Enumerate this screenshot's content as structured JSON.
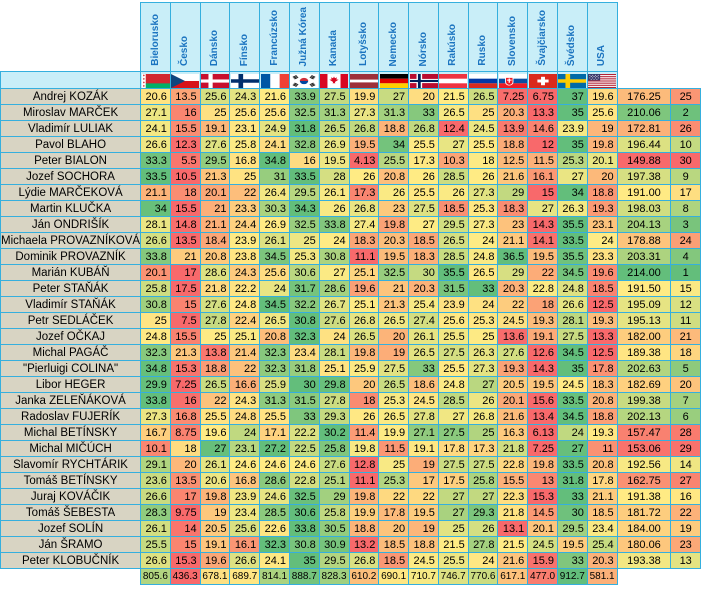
{
  "chart_data": {
    "type": "heatmap",
    "palette": {
      "low": "#F8696B",
      "mid": "#FFEB84",
      "high": "#63BE7B"
    },
    "header_bg": "#C9EEF8",
    "header_text_color": "#1B74C0",
    "name_bg": "#D8D4C3",
    "grid_color": "#35AFDE",
    "columns": [
      {
        "label": "Bielorusko",
        "flag": "by"
      },
      {
        "label": "Česko",
        "flag": "cz"
      },
      {
        "label": "Dánsko",
        "flag": "dk"
      },
      {
        "label": "Fínsko",
        "flag": "fi"
      },
      {
        "label": "Francúzsko",
        "flag": "fr"
      },
      {
        "label": "Južná Kórea",
        "flag": "kr"
      },
      {
        "label": "Kanada",
        "flag": "ca"
      },
      {
        "label": "Lotyšsko",
        "flag": "lv"
      },
      {
        "label": "Nemecko",
        "flag": "de"
      },
      {
        "label": "Nórsko",
        "flag": "no"
      },
      {
        "label": "Rakúsko",
        "flag": "at"
      },
      {
        "label": "Rusko",
        "flag": "ru"
      },
      {
        "label": "Slovensko",
        "flag": "sk"
      },
      {
        "label": "Švajčiarsko",
        "flag": "ch"
      },
      {
        "label": "Švédsko",
        "flag": "se"
      },
      {
        "label": "USA",
        "flag": "us"
      }
    ],
    "rows": [
      {
        "name": "Andrej KOZÁK",
        "values": [
          20.6,
          13.5,
          25.6,
          24.3,
          21.6,
          33.9,
          27.5,
          19.9,
          27,
          20,
          21.5,
          26.5,
          7.25,
          6.75,
          37,
          19.6
        ],
        "total": "176.25",
        "rank": 25
      },
      {
        "name": "Miroslav MARČEK",
        "values": [
          27.1,
          16,
          25,
          25.6,
          25.6,
          32.5,
          31.3,
          27.3,
          31.3,
          33,
          26.5,
          25,
          20.3,
          13.3,
          35,
          25.6
        ],
        "total": "210.06",
        "rank": 2
      },
      {
        "name": "Vladimír LULIAK",
        "values": [
          24.1,
          15.5,
          19.1,
          23.1,
          24.9,
          31.8,
          26.5,
          26.8,
          18.8,
          26.8,
          12.4,
          24.5,
          13.9,
          14.6,
          23.9,
          19
        ],
        "total": "172.81",
        "rank": 26
      },
      {
        "name": "Pavol BLAHO",
        "values": [
          26.6,
          12.3,
          27.6,
          25.8,
          24.1,
          32.8,
          26.9,
          19.5,
          34,
          25.5,
          27,
          25.5,
          18.8,
          12,
          35,
          19.8
        ],
        "total": "196.44",
        "rank": 10
      },
      {
        "name": "Peter BIALON",
        "values": [
          33.3,
          5.5,
          29.5,
          16.8,
          34.8,
          16,
          19.5,
          4.13,
          25.5,
          17.3,
          10.3,
          18,
          12.5,
          11.5,
          25.3,
          20.1
        ],
        "total": "149.88",
        "rank": 30
      },
      {
        "name": "Jozef SOCHORA",
        "values": [
          33.5,
          10.5,
          21.3,
          25,
          31,
          33.5,
          28,
          26,
          20.8,
          26,
          28.5,
          26,
          21.6,
          16.1,
          27,
          20
        ],
        "total": "197.38",
        "rank": 9
      },
      {
        "name": "Lýdie MARČEKOVÁ",
        "values": [
          21.1,
          18,
          20.1,
          22,
          26.4,
          29.5,
          26.1,
          17.3,
          26,
          25.5,
          26,
          27.3,
          29,
          15,
          34,
          18.8
        ],
        "total": "191.00",
        "rank": 17
      },
      {
        "name": "Martin KLUČKA",
        "values": [
          34,
          15.5,
          21,
          23.3,
          30.3,
          34.3,
          26,
          26.8,
          23,
          27.5,
          18.5,
          25.3,
          18.3,
          27,
          26.3,
          19.3
        ],
        "total": "198.03",
        "rank": 8
      },
      {
        "name": "Ján ONDRIŠÍK",
        "values": [
          28.1,
          14.8,
          21.1,
          24.4,
          26.9,
          32.5,
          33.8,
          27.4,
          19.8,
          27,
          29.5,
          27.3,
          23,
          14.3,
          35.5,
          23.1
        ],
        "total": "204.13",
        "rank": 3
      },
      {
        "name": "Michaela PROVAZNÍKOVÁ",
        "values": [
          26.6,
          13.5,
          18.4,
          23.9,
          26.1,
          25,
          24,
          18.3,
          20.3,
          18.5,
          26.5,
          24,
          21.1,
          14.1,
          33.5,
          24
        ],
        "total": "178.88",
        "rank": 24
      },
      {
        "name": "Dominik PROVAZNÍK",
        "values": [
          33.8,
          21,
          20.8,
          23.8,
          34.5,
          25.3,
          30.8,
          11.1,
          19.5,
          18.3,
          28.5,
          24.8,
          36.5,
          19.5,
          35.5,
          23.3
        ],
        "total": "203.31",
        "rank": 4
      },
      {
        "name": "Marián KUBÁŇ",
        "values": [
          20.1,
          17,
          28.6,
          24.3,
          25.6,
          30.6,
          27,
          25.1,
          32.5,
          30,
          35.5,
          26.5,
          29,
          22,
          34.5,
          19.6
        ],
        "total": "214.00",
        "rank": 1
      },
      {
        "name": "Peter STAŇÁK",
        "values": [
          25.8,
          17.5,
          21.8,
          22.2,
          24,
          31.7,
          28.6,
          19.6,
          21,
          20.3,
          31.5,
          33,
          20.3,
          22.8,
          24.8,
          18.5
        ],
        "total": "191.50",
        "rank": 15
      },
      {
        "name": "Vladimír STAŇÁK",
        "values": [
          30.8,
          15,
          27.6,
          24.8,
          34.5,
          32.2,
          26.7,
          25.1,
          21.3,
          25.4,
          23.9,
          24,
          22,
          18,
          26.6,
          12.5
        ],
        "total": "195.09",
        "rank": 12
      },
      {
        "name": "Petr SEDLÁČEK",
        "values": [
          25,
          7.5,
          27.8,
          22.4,
          26.5,
          30.8,
          27.6,
          26.8,
          26.5,
          27.4,
          25.6,
          25.3,
          24.5,
          19.3,
          28.1,
          19.3
        ],
        "total": "195.13",
        "rank": 11
      },
      {
        "name": "Jozef OČKAJ",
        "values": [
          24.8,
          15.5,
          25,
          25.1,
          20.8,
          32.3,
          24,
          26.5,
          20,
          26.1,
          25.5,
          25,
          13.6,
          19.1,
          27.5,
          13.3
        ],
        "total": "182.00",
        "rank": 21
      },
      {
        "name": "Michal PAGÁČ",
        "values": [
          32.3,
          21.3,
          13.8,
          21.4,
          32.3,
          23.4,
          28.1,
          19.8,
          19,
          26.5,
          27.5,
          26.3,
          27.6,
          12.6,
          34.5,
          12.5
        ],
        "total": "189.38",
        "rank": 18
      },
      {
        "name": "\"Pierluigi COLINA\"",
        "values": [
          34.8,
          15.3,
          18.8,
          22,
          32.3,
          31.8,
          25.1,
          25.9,
          27.5,
          33,
          25.5,
          27.3,
          19.3,
          14.3,
          35,
          17.8
        ],
        "total": "202.63",
        "rank": 5
      },
      {
        "name": "Libor HEGER",
        "values": [
          29.9,
          7.25,
          26.5,
          16.6,
          25.9,
          30,
          29.8,
          20,
          26.5,
          18.6,
          24.8,
          27,
          20.5,
          19.5,
          24.5,
          18.3
        ],
        "total": "182.69",
        "rank": 20
      },
      {
        "name": "Janka ZELEŇÁKOVÁ",
        "values": [
          33.8,
          16,
          22,
          24.3,
          31.3,
          31.5,
          27.8,
          18,
          25.3,
          24.5,
          28.5,
          26,
          20.1,
          15.6,
          33.5,
          20.8
        ],
        "total": "199.38",
        "rank": 7
      },
      {
        "name": "Radoslav FUJERÍK",
        "values": [
          27.3,
          16.8,
          25.5,
          24.8,
          25.5,
          33,
          29.3,
          26,
          26.5,
          27.8,
          27,
          26.8,
          21.6,
          13.4,
          34.5,
          18.8
        ],
        "total": "202.13",
        "rank": 6
      },
      {
        "name": "Michal BETÍNSKY",
        "values": [
          16.7,
          8.75,
          19.6,
          24,
          17.1,
          22.2,
          30.2,
          11.4,
          19.9,
          27.1,
          27.5,
          25,
          16.3,
          6.13,
          24,
          19.3
        ],
        "total": "157.47",
        "rank": 28
      },
      {
        "name": "Michal MIČÚCH",
        "values": [
          10.1,
          18,
          27,
          23.1,
          27.2,
          22.5,
          25.8,
          19.8,
          11.5,
          19.1,
          17.8,
          17.3,
          21.8,
          7.25,
          27,
          11
        ],
        "total": "153.06",
        "rank": 29
      },
      {
        "name": "Slavomír RYCHTÁRIK",
        "values": [
          29.1,
          20,
          26.1,
          24.6,
          24.6,
          24.6,
          27.6,
          12.8,
          25,
          19,
          27.5,
          27.5,
          22.8,
          19.8,
          33.5,
          20.8
        ],
        "total": "192.56",
        "rank": 14
      },
      {
        "name": "Tomáš BETÍNSKY",
        "values": [
          23.6,
          13.5,
          20.6,
          16.8,
          28.6,
          22.8,
          25.1,
          11.1,
          25.3,
          17,
          17.5,
          25.8,
          15.5,
          13,
          31.8,
          17.8
        ],
        "total": "162.75",
        "rank": 27
      },
      {
        "name": "Juraj KOVÁČIK",
        "values": [
          26.6,
          17,
          19.8,
          23.9,
          24.6,
          32.5,
          29,
          19.8,
          22,
          22,
          27,
          27,
          22.3,
          15.3,
          33,
          21.1
        ],
        "total": "191.38",
        "rank": 16
      },
      {
        "name": "Tomáš ŠEBESTA",
        "values": [
          28.3,
          9.75,
          19,
          23.4,
          28.5,
          30.6,
          25.8,
          19.9,
          17.8,
          19.5,
          27,
          29.3,
          21.8,
          14.5,
          30,
          18.5
        ],
        "total": "181.72",
        "rank": 22
      },
      {
        "name": "Jozef SOLÍN",
        "values": [
          26.1,
          14,
          20.5,
          25.6,
          22.6,
          33.8,
          30.5,
          18.8,
          20,
          19,
          25,
          26,
          13.1,
          20.1,
          29.5,
          23.4
        ],
        "total": "184.00",
        "rank": 19
      },
      {
        "name": "Ján ŠRAMO",
        "values": [
          25.5,
          15,
          19.1,
          16.1,
          32.3,
          30.8,
          30.9,
          13.2,
          18.5,
          18.8,
          21.5,
          27.8,
          21.5,
          24.5,
          19.5,
          25.4
        ],
        "total": "180.06",
        "rank": 23
      },
      {
        "name": "Peter KLOBUČNÍK",
        "values": [
          26.6,
          15.3,
          19.6,
          26.6,
          24.1,
          35,
          29.5,
          26.8,
          18.5,
          24.5,
          25.5,
          24,
          21.6,
          15.9,
          33,
          20.3
        ],
        "total": "193.38",
        "rank": 13
      }
    ],
    "column_sums": [
      "805.6",
      "436.3",
      "678.1",
      "689.7",
      "814.1",
      "888.7",
      "828.3",
      "610.2",
      "690.1",
      "710.7",
      "746.7",
      "770.6",
      "617.1",
      "477.0",
      "912.7",
      "581.1"
    ]
  }
}
